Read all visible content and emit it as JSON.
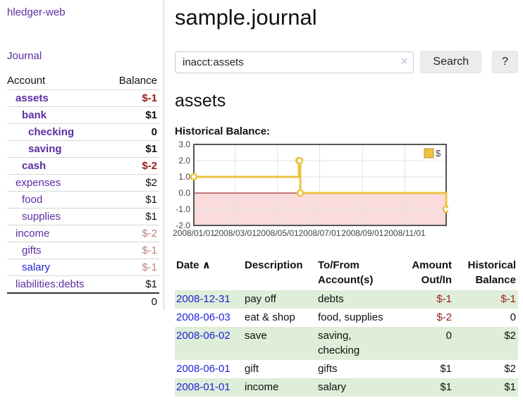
{
  "sidebar": {
    "app_title": "hledger-web",
    "journal_link": "Journal",
    "accounts_table": {
      "headers": {
        "account": "Account",
        "balance": "Balance"
      },
      "rows": [
        {
          "account": "assets",
          "balance": "$-1"
        },
        {
          "account": "bank",
          "balance": "$1"
        },
        {
          "account": "checking",
          "balance": "0"
        },
        {
          "account": "saving",
          "balance": "$1"
        },
        {
          "account": "cash",
          "balance": "$-2"
        },
        {
          "account": "expenses",
          "balance": "$2"
        },
        {
          "account": "food",
          "balance": "$1"
        },
        {
          "account": "supplies",
          "balance": "$1"
        },
        {
          "account": "income",
          "balance": "$-2"
        },
        {
          "account": "gifts",
          "balance": "$-1"
        },
        {
          "account": "salary",
          "balance": "$-1"
        },
        {
          "account": "liabilities:debts",
          "balance": "$1"
        }
      ],
      "total": "0"
    }
  },
  "main": {
    "title": "sample.journal",
    "search": {
      "value": "inacct:assets",
      "clear_icon": "×",
      "button": "Search",
      "help_button": "?"
    },
    "account_heading": "assets",
    "chart_label": "Historical Balance:",
    "register_table": {
      "headers": {
        "date": "Date",
        "sort_indicator": "∧",
        "description": "Description",
        "accounts": "To/From Account(s)",
        "amount": "Amount Out/In",
        "balance": "Historical Balance"
      },
      "rows": [
        {
          "date": "2008-12-31",
          "description": "pay off",
          "accounts": "debts",
          "amount": "$-1",
          "balance": "$-1"
        },
        {
          "date": "2008-06-03",
          "description": "eat & shop",
          "accounts": "food, supplies",
          "amount": "$-2",
          "balance": "0"
        },
        {
          "date": "2008-06-02",
          "description": "save",
          "accounts": "saving, checking",
          "amount": "0",
          "balance": "$2"
        },
        {
          "date": "2008-06-01",
          "description": "gift",
          "accounts": "gifts",
          "amount": "$1",
          "balance": "$2"
        },
        {
          "date": "2008-01-01",
          "description": "income",
          "accounts": "salary",
          "amount": "$1",
          "balance": "$1"
        }
      ]
    }
  },
  "chart_data": {
    "type": "line",
    "title": "Historical Balance",
    "step": true,
    "x_range": [
      "2008-01-01",
      "2008-12-31"
    ],
    "ylim": [
      -2,
      3
    ],
    "y_ticks": [
      "3.0",
      "2.0",
      "1.0",
      "0.0",
      "-1.0",
      "-2.0"
    ],
    "x_ticks": [
      {
        "date": "2008-01-01",
        "label": "2008/01/01"
      },
      {
        "date": "2008-03-01",
        "label": "2008/03/01"
      },
      {
        "date": "2008-05-01",
        "label": "2008/05/01"
      },
      {
        "date": "2008-07-01",
        "label": "2008/07/01"
      },
      {
        "date": "2008-09-01",
        "label": "2008/09/01"
      },
      {
        "date": "2008-11-01",
        "label": "2008/11/01"
      }
    ],
    "series": [
      {
        "name": "$",
        "color": "#edc240",
        "points": [
          {
            "date": "2008-01-01",
            "value": 1
          },
          {
            "date": "2008-06-01",
            "value": 2
          },
          {
            "date": "2008-06-02",
            "value": 2
          },
          {
            "date": "2008-06-03",
            "value": 0
          },
          {
            "date": "2008-12-31",
            "value": -1
          }
        ]
      }
    ],
    "legend": {
      "label": "$",
      "position": "top-right"
    },
    "colors": {
      "frame": "#555555",
      "grid": "#e3e3e3",
      "zero_line": "#8b0000",
      "negative_region": "#fadcdc",
      "tick_text": "#444444",
      "marker_fill": "#ffffff",
      "legend_border": "#b9952e"
    }
  },
  "colors": {
    "link_purple": "#5c2da2",
    "link_blue": "#2222dd",
    "negative_strong": "#9d1a1a",
    "negative_soft": "#c08181",
    "row_green": "#deeed8"
  }
}
